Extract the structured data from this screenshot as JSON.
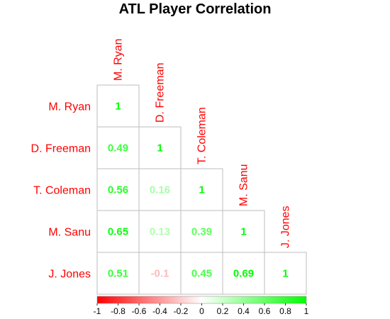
{
  "chart_data": {
    "type": "heatmap",
    "title": "ATL Player Correlation",
    "players": [
      "M. Ryan",
      "D. Freeman",
      "T. Coleman",
      "M. Sanu",
      "J. Jones"
    ],
    "lower_triangle_values": [
      [
        1
      ],
      [
        0.49,
        1
      ],
      [
        0.56,
        0.16,
        1
      ],
      [
        0.65,
        0.13,
        0.39,
        1
      ],
      [
        0.51,
        -0.1,
        0.45,
        0.69,
        1
      ]
    ],
    "display_labels": [
      [
        "1"
      ],
      [
        "0.49",
        "1"
      ],
      [
        "0.56",
        "0.16",
        "1"
      ],
      [
        "0.65",
        "0.13",
        "0.39",
        "1"
      ],
      [
        "0.51",
        "-0.1",
        "0.45",
        "0.69",
        "1"
      ]
    ],
    "colorbar": {
      "min": -1,
      "max": 1,
      "colors": {
        "low": "#ff0000",
        "mid": "#ffffff",
        "high": "#00ff00"
      },
      "ticks": [
        "-1",
        "-0.8",
        "-0.6",
        "-0.4",
        "-0.2",
        "0",
        "0.2",
        "0.4",
        "0.6",
        "0.8",
        "1"
      ]
    },
    "label_color": "#ff0000",
    "grid_color": "#bdbdbd"
  }
}
